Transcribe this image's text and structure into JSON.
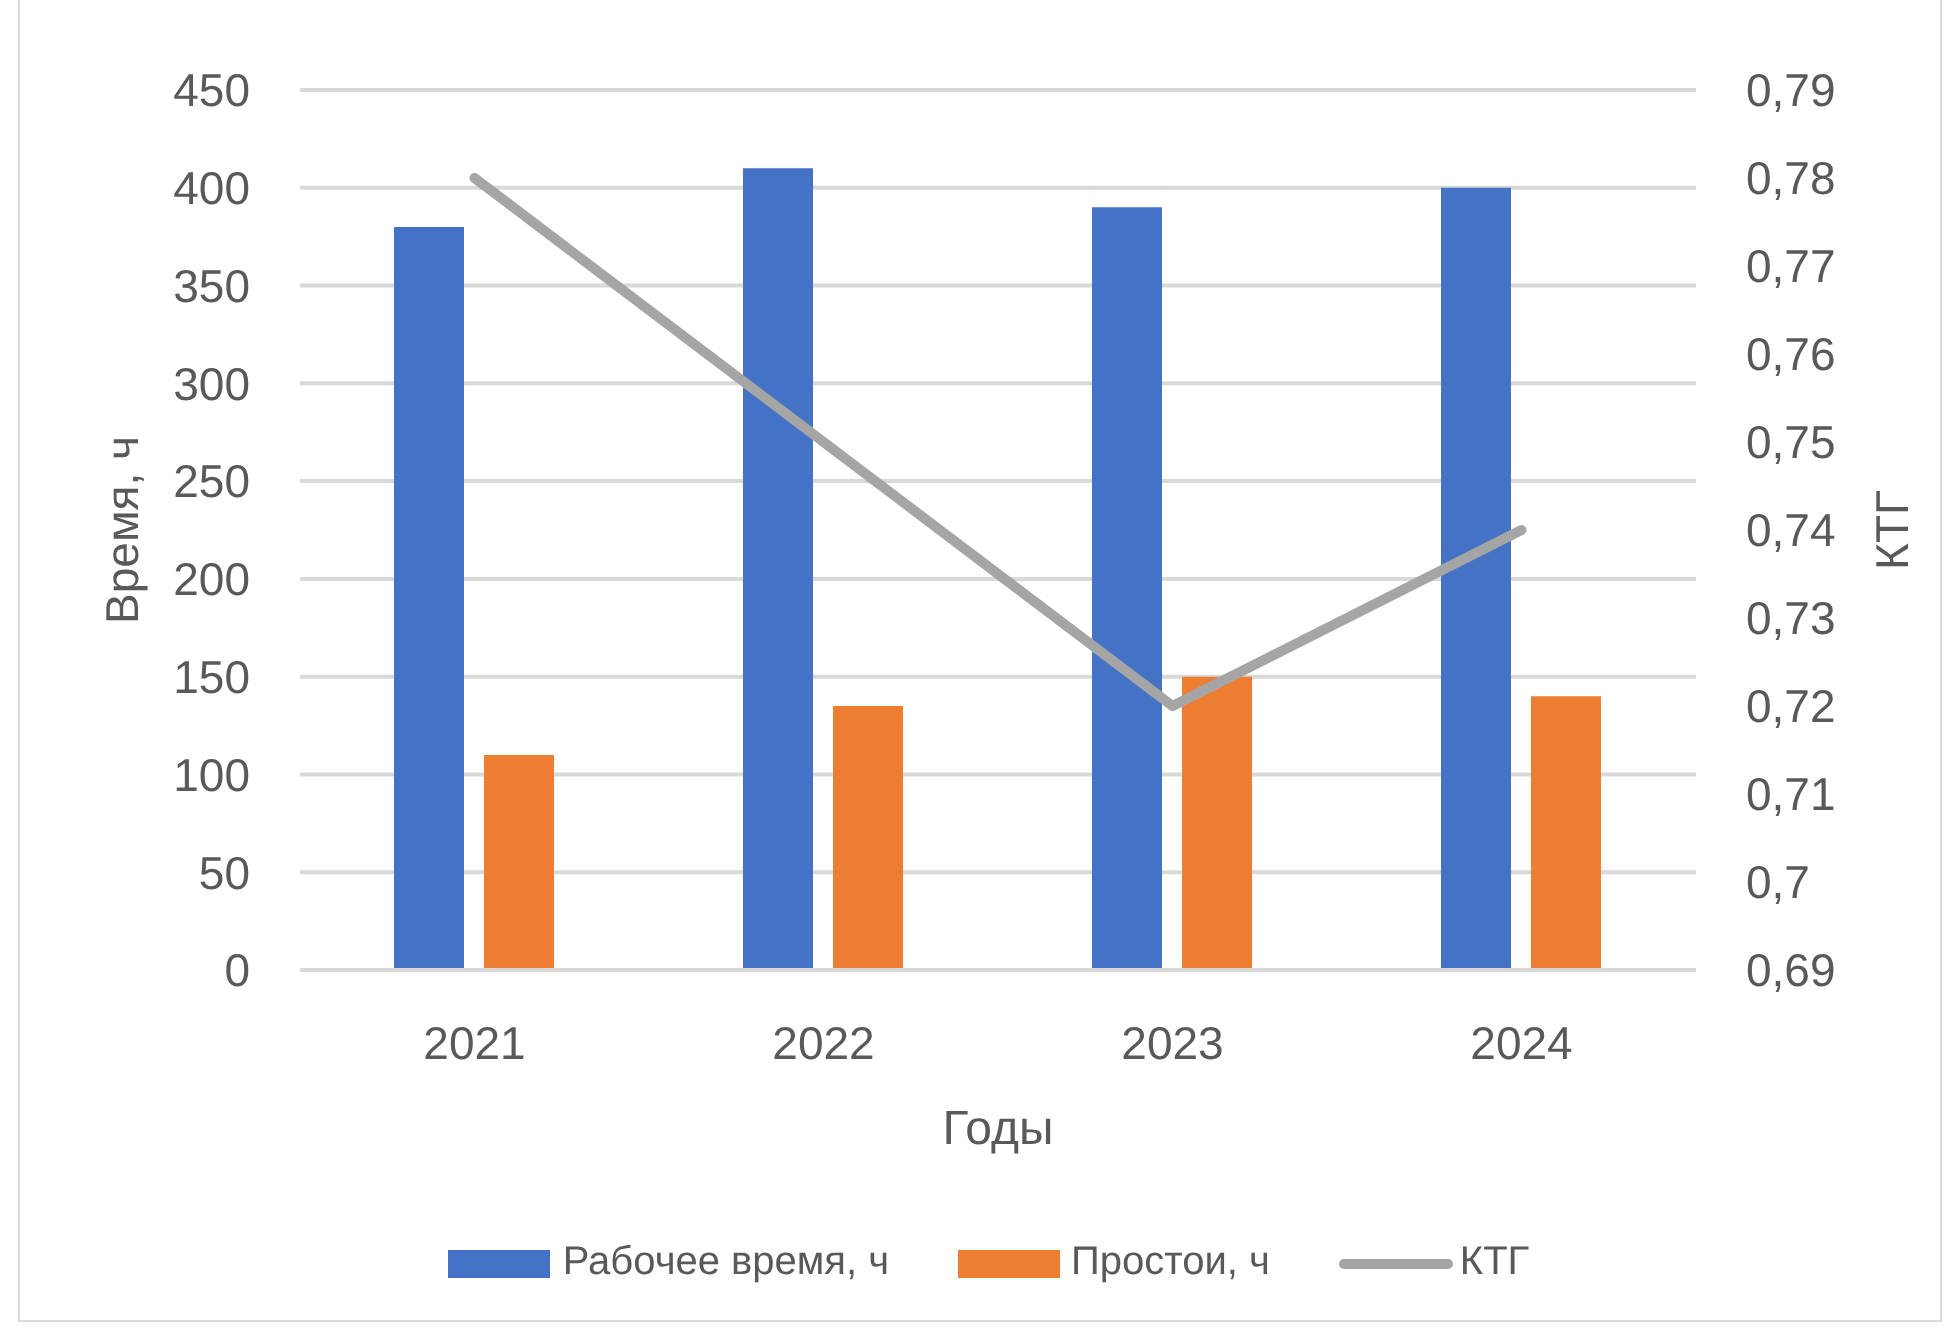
{
  "chart_data": {
    "type": "bar",
    "xlabel": "Годы",
    "ylabel": "Время, ч",
    "y2label": "КТГ",
    "categories": [
      "2021",
      "2022",
      "2023",
      "2024"
    ],
    "series": [
      {
        "name": "Рабочее время, ч",
        "color": "#4472c4",
        "values": [
          380,
          410,
          390,
          400
        ]
      },
      {
        "name": "Простои, ч",
        "color": "#ed7d31",
        "values": [
          110,
          135,
          150,
          140
        ]
      },
      {
        "name": "КТГ",
        "type": "line",
        "axis": "y2",
        "color": "#a5a5a5",
        "values": [
          0.78,
          0.75,
          0.72,
          0.74
        ]
      }
    ],
    "ylim": [
      0,
      450
    ],
    "yticks": [
      0,
      50,
      100,
      150,
      200,
      250,
      300,
      350,
      400,
      450
    ],
    "y2lim": [
      0.69,
      0.79
    ],
    "y2ticks": [
      {
        "value": 0.69,
        "label": "0,69"
      },
      {
        "value": 0.7,
        "label": "0,7"
      },
      {
        "value": 0.71,
        "label": "0,71"
      },
      {
        "value": 0.72,
        "label": "0,72"
      },
      {
        "value": 0.73,
        "label": "0,73"
      },
      {
        "value": 0.74,
        "label": "0,74"
      },
      {
        "value": 0.75,
        "label": "0,75"
      },
      {
        "value": 0.76,
        "label": "0,76"
      },
      {
        "value": 0.77,
        "label": "0,77"
      },
      {
        "value": 0.78,
        "label": "0,78"
      },
      {
        "value": 0.79,
        "label": "0,79"
      }
    ],
    "grid": "y",
    "legend": "bottom"
  }
}
